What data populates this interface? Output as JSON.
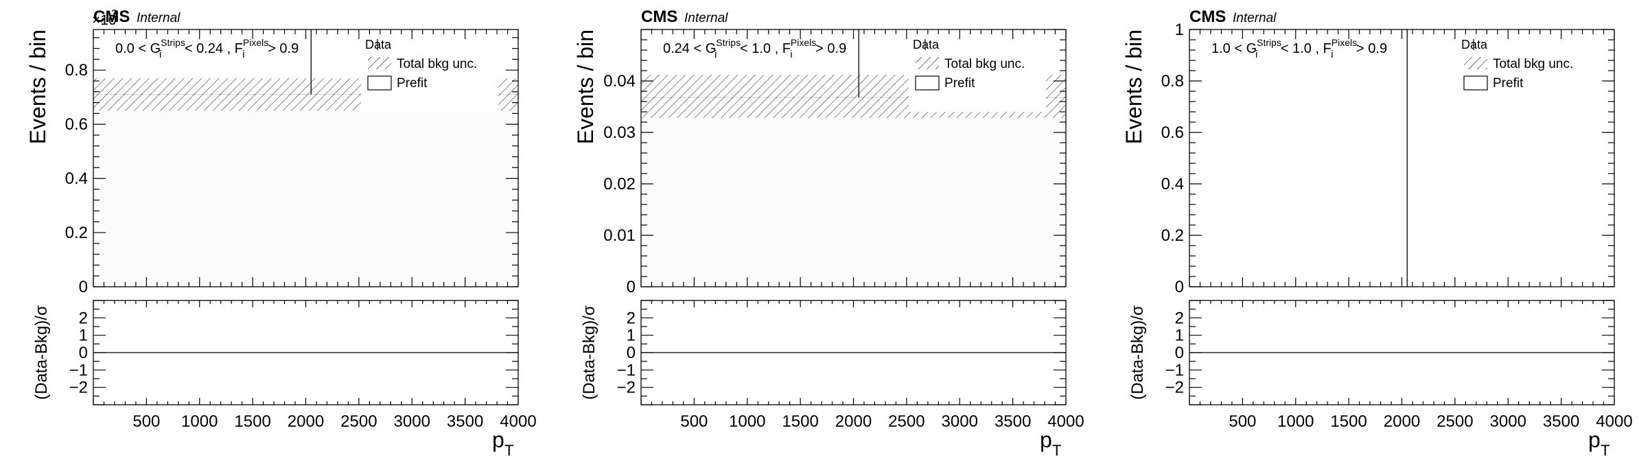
{
  "experiment_label": "CMS",
  "status_label": "Internal",
  "legend_entries": [
    {
      "label": "Data",
      "style": "marker"
    },
    {
      "label": "Total bkg unc.",
      "style": "hatched-box"
    },
    {
      "label": "Prefit",
      "style": "open-box"
    }
  ],
  "colors": {
    "frame": "#000000",
    "prefit_fill": "#fbfbfb",
    "hatch": "#000000",
    "background": "#ffffff"
  },
  "chart_data": [
    {
      "type": "bar",
      "title": "",
      "selection_parts": [
        "0.0 < G",
        "Strips",
        "i",
        " < 0.24 , F",
        "Pixels",
        "i",
        " > 0.9"
      ],
      "ylabel": "Events / bin",
      "ylim": [
        0,
        0.95
      ],
      "y_multiplier": "×10",
      "y_multiplier_exp": "3",
      "y_ticks": [
        "0",
        "0.2",
        "0.4",
        "0.6",
        "0.8"
      ],
      "xlabel": "p",
      "xlabel_sub": "T",
      "xlim": [
        0,
        4000
      ],
      "x_ticks": [
        "500",
        "1000",
        "1500",
        "2000",
        "2500",
        "3000",
        "3500",
        "4000"
      ],
      "prefit": {
        "x_edges": [
          0,
          4000
        ],
        "values": [
          0.71
        ]
      },
      "bkg_unc": {
        "x_edges": [
          0,
          4000
        ],
        "low": [
          0.65
        ],
        "high": [
          0.77
        ]
      },
      "data_points": [
        {
          "x": 2050,
          "y": 0.71
        }
      ],
      "ratio": {
        "ylabel": "(Data-Bkg)/σ",
        "ylim": [
          -3,
          3
        ],
        "y_ticks": [
          "2",
          "1",
          "0",
          "−1",
          "−2"
        ],
        "reference": 0
      }
    },
    {
      "type": "bar",
      "title": "",
      "selection_parts": [
        "0.24 < G",
        "Strips",
        "i",
        " < 1.0 , F",
        "Pixels",
        "i",
        " > 0.9"
      ],
      "ylabel": "Events / bin",
      "ylim": [
        0,
        0.05
      ],
      "y_multiplier": "",
      "y_multiplier_exp": "",
      "y_ticks": [
        "0",
        "0.01",
        "0.02",
        "0.03",
        "0.04"
      ],
      "xlabel": "p",
      "xlabel_sub": "T",
      "xlim": [
        0,
        4000
      ],
      "x_ticks": [
        "500",
        "1000",
        "1500",
        "2000",
        "2500",
        "3000",
        "3500",
        "4000"
      ],
      "prefit": {
        "x_edges": [
          0,
          4000
        ],
        "values": [
          0.0368
        ]
      },
      "bkg_unc": {
        "x_edges": [
          0,
          4000
        ],
        "low": [
          0.0328
        ],
        "high": [
          0.0412
        ]
      },
      "data_points": [
        {
          "x": 2050,
          "y": 0.0368
        }
      ],
      "ratio": {
        "ylabel": "(Data-Bkg)/σ",
        "ylim": [
          -3,
          3
        ],
        "y_ticks": [
          "2",
          "1",
          "0",
          "−1",
          "−2"
        ],
        "reference": 0
      }
    },
    {
      "type": "bar",
      "title": "",
      "selection_parts": [
        "1.0 < G",
        "Strips",
        "i",
        " < 1.0 , F",
        "Pixels",
        "i",
        " > 0.9"
      ],
      "ylabel": "Events / bin",
      "ylim": [
        0,
        1
      ],
      "y_multiplier": "",
      "y_multiplier_exp": "",
      "y_ticks": [
        "0",
        "0.2",
        "0.4",
        "0.6",
        "0.8",
        "1"
      ],
      "xlabel": "p",
      "xlabel_sub": "T",
      "xlim": [
        0,
        4000
      ],
      "x_ticks": [
        "500",
        "1000",
        "1500",
        "2000",
        "2500",
        "3000",
        "3500",
        "4000"
      ],
      "prefit": {
        "x_edges": [
          0,
          4000
        ],
        "values": [
          0
        ]
      },
      "bkg_unc": {
        "x_edges": [
          0,
          4000
        ],
        "low": [
          0
        ],
        "high": [
          0
        ]
      },
      "data_points": [
        {
          "x": 2050,
          "y": 1
        }
      ],
      "ratio": {
        "ylabel": "(Data-Bkg)/σ",
        "ylim": [
          -3,
          3
        ],
        "y_ticks": [
          "2",
          "1",
          "0",
          "−1",
          "−2"
        ],
        "reference": 0
      }
    }
  ]
}
